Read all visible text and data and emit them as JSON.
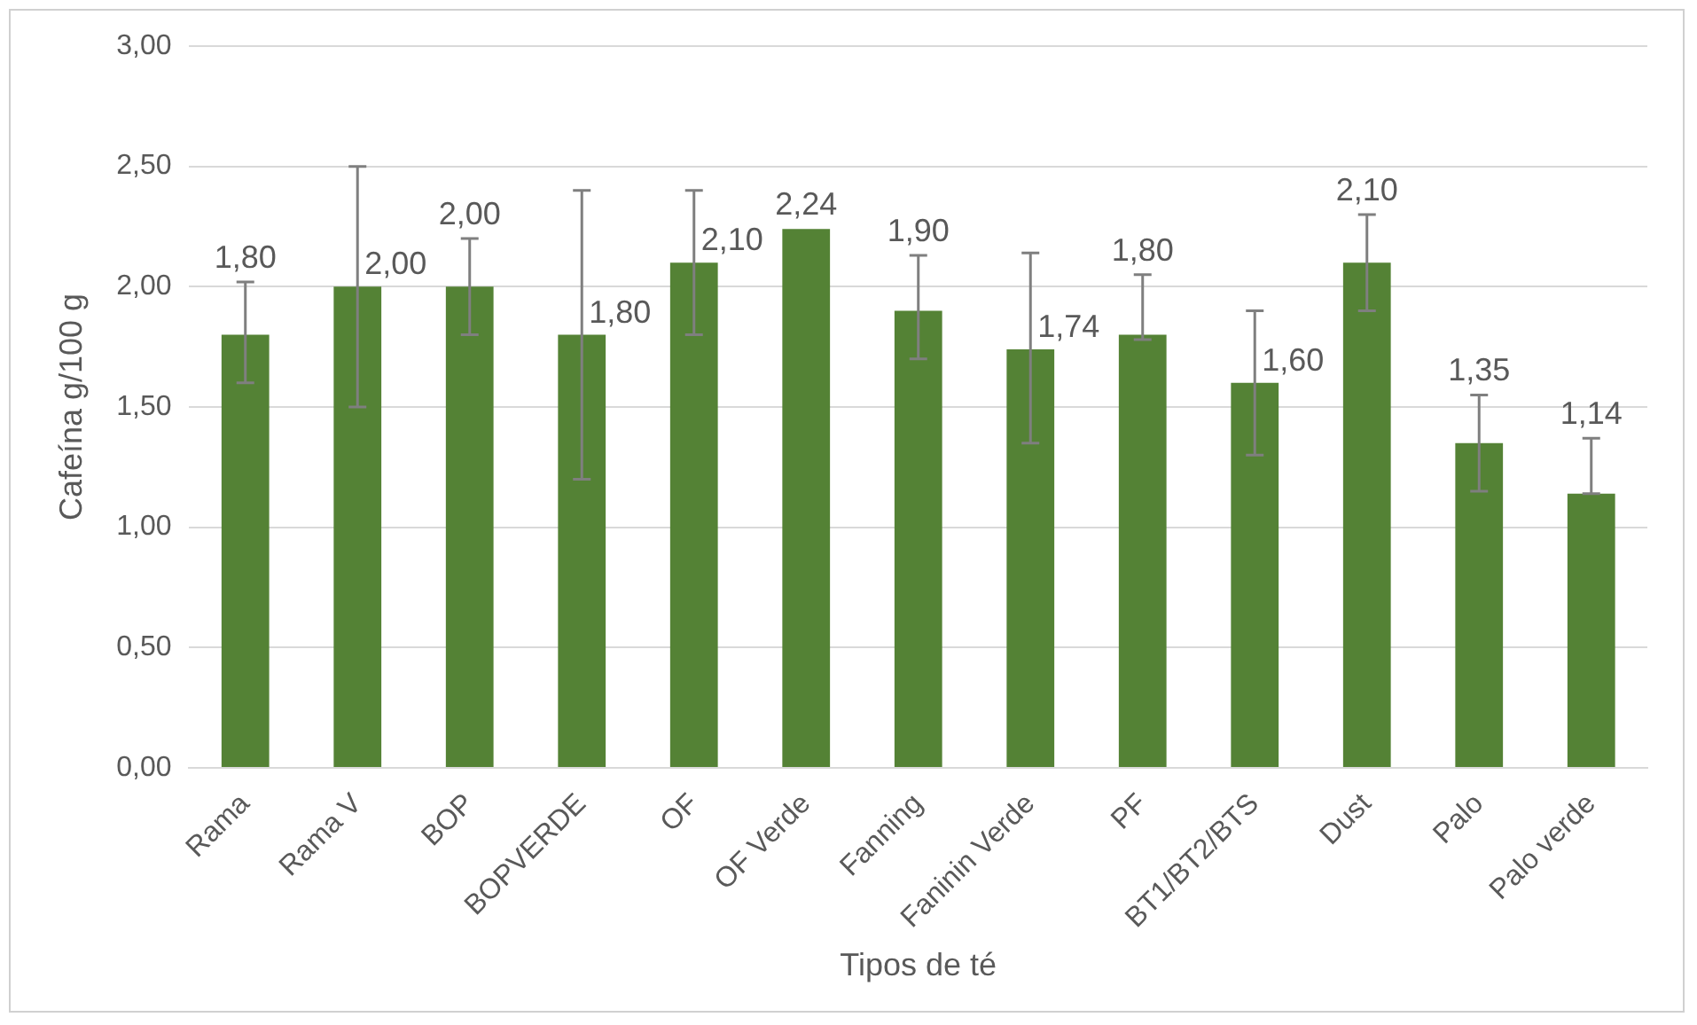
{
  "chart_data": {
    "type": "bar",
    "xlabel": "Tipos de té",
    "ylabel": "Cafeína g/100 g",
    "categories": [
      "Rama",
      "Rama V",
      "BOP",
      "BOPVERDE",
      "OF",
      "OF Verde",
      "Fanning",
      "Faninin Verde",
      "PF",
      "BT1/BT2/BTS",
      "Dust",
      "Palo",
      "Palo verde"
    ],
    "values": [
      1.8,
      2.0,
      2.0,
      1.8,
      2.1,
      2.24,
      1.9,
      1.74,
      1.8,
      1.6,
      2.1,
      1.35,
      1.14
    ],
    "value_labels": [
      "1,80",
      "2,00",
      "2,00",
      "1,80",
      "2,10",
      "2,24",
      "1,90",
      "1,74",
      "1,80",
      "1,60",
      "2,10",
      "1,35",
      "1,14"
    ],
    "errors": [
      [
        1.6,
        2.02
      ],
      [
        1.5,
        2.5
      ],
      [
        1.8,
        2.2
      ],
      [
        1.2,
        2.4
      ],
      [
        1.8,
        2.4
      ],
      null,
      [
        1.7,
        2.13
      ],
      [
        1.35,
        2.14
      ],
      [
        1.78,
        2.05
      ],
      [
        1.3,
        1.9
      ],
      [
        1.9,
        2.3
      ],
      [
        1.15,
        1.55
      ],
      [
        1.14,
        1.37
      ]
    ],
    "color": "#548235",
    "ylim": [
      0,
      3
    ],
    "yticks": [
      {
        "value": 0,
        "label": "0,00"
      },
      {
        "value": 0.5,
        "label": "0,50"
      },
      {
        "value": 1,
        "label": "1,00"
      },
      {
        "value": 1.5,
        "label": "1,50"
      },
      {
        "value": 2,
        "label": "2,00"
      },
      {
        "value": 2.5,
        "label": "2,50"
      },
      {
        "value": 3,
        "label": "3,00"
      }
    ],
    "grid": "y",
    "legend": false
  }
}
